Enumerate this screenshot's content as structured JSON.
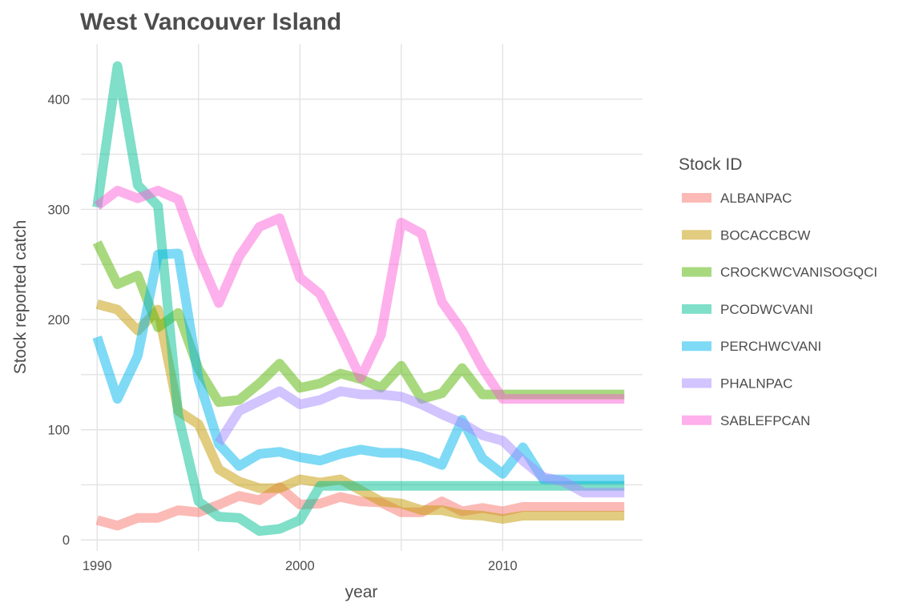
{
  "chart_data": {
    "type": "line",
    "title": "West Vancouver Island",
    "xlabel": "year",
    "ylabel": "Stock reported catch",
    "xlim": [
      1989.2,
      2016.9
    ],
    "ylim": [
      -10,
      450
    ],
    "x_ticks": [
      1990,
      2000,
      2010
    ],
    "y_ticks": [
      0,
      100,
      200,
      300,
      400
    ],
    "grid": true,
    "legend": {
      "title": "Stock ID",
      "position": "right"
    },
    "series": [
      {
        "name": "ALBANPAC",
        "color": "#F8766D",
        "x": [
          1990,
          1991,
          1992,
          1993,
          1994,
          1995,
          1996,
          1997,
          1998,
          1999,
          2000,
          2001,
          2002,
          2003,
          2004,
          2005,
          2006,
          2007,
          2008,
          2009,
          2010,
          2011,
          2012,
          2013,
          2014,
          2015,
          2016
        ],
        "y": [
          18,
          13,
          20,
          20,
          27,
          25,
          32,
          40,
          36,
          48,
          32,
          33,
          39,
          35,
          34,
          25,
          25,
          35,
          26,
          29,
          26,
          30,
          30,
          30,
          30,
          30,
          30
        ]
      },
      {
        "name": "BOCACCBCW",
        "color": "#C49A00",
        "x": [
          1990,
          1991,
          1992,
          1993,
          1994,
          1995,
          1996,
          1997,
          1998,
          1999,
          2000,
          2001,
          2002,
          2003,
          2004,
          2005,
          2006,
          2007,
          2008,
          2009,
          2010,
          2011,
          2012,
          2013,
          2014,
          2015,
          2016
        ],
        "y": [
          214,
          209,
          190,
          209,
          117,
          105,
          64,
          53,
          47,
          47,
          55,
          52,
          55,
          45,
          35,
          33,
          27,
          27,
          23,
          22,
          19,
          22,
          22,
          22,
          22,
          22,
          22
        ]
      },
      {
        "name": "CROCKWCVANISOGQCI",
        "color": "#53B400",
        "x": [
          1990,
          1991,
          1992,
          1993,
          1994,
          1995,
          1996,
          1997,
          1998,
          1999,
          2000,
          2001,
          2002,
          2003,
          2004,
          2005,
          2006,
          2007,
          2008,
          2009,
          2010,
          2011,
          2012,
          2013,
          2014,
          2015,
          2016
        ],
        "y": [
          270,
          232,
          240,
          193,
          206,
          155,
          125,
          127,
          142,
          160,
          138,
          142,
          151,
          146,
          138,
          158,
          128,
          133,
          156,
          132,
          132,
          132,
          132,
          132,
          132,
          132,
          132
        ]
      },
      {
        "name": "PCODWCVANI",
        "color": "#00C094",
        "x": [
          1990,
          1991,
          1992,
          1993,
          1994,
          1995,
          1996,
          1997,
          1998,
          1999,
          2000,
          2001,
          2002,
          2003,
          2004,
          2005,
          2006,
          2007,
          2008,
          2009,
          2010,
          2011,
          2012,
          2013,
          2014,
          2015,
          2016
        ],
        "y": [
          302,
          430,
          322,
          303,
          113,
          35,
          21,
          20,
          8,
          10,
          18,
          49,
          49,
          49,
          49,
          49,
          49,
          49,
          49,
          49,
          49,
          49,
          49,
          49,
          49,
          49,
          49
        ]
      },
      {
        "name": "PERCHWCVANI",
        "color": "#00B6EB",
        "x": [
          1990,
          1991,
          1992,
          1993,
          1994,
          1995,
          1996,
          1997,
          1998,
          1999,
          2000,
          2001,
          2002,
          2003,
          2004,
          2005,
          2006,
          2007,
          2008,
          2009,
          2010,
          2011,
          2012,
          2013,
          2014,
          2015,
          2016
        ],
        "y": [
          184,
          128,
          167,
          259,
          260,
          146,
          87,
          67,
          78,
          80,
          75,
          72,
          78,
          82,
          79,
          79,
          75,
          68,
          109,
          74,
          60,
          84,
          55,
          55,
          55,
          55,
          55
        ]
      },
      {
        "name": "PHALNPAC",
        "color": "#A58AFF",
        "x": [
          1996,
          1997,
          1998,
          1999,
          2000,
          2001,
          2002,
          2003,
          2004,
          2005,
          2006,
          2007,
          2008,
          2009,
          2010,
          2011,
          2012,
          2013,
          2014,
          2015,
          2016
        ],
        "y": [
          88,
          117,
          126,
          135,
          123,
          127,
          135,
          132,
          132,
          130,
          123,
          114,
          106,
          95,
          90,
          72,
          57,
          53,
          43,
          43,
          43
        ]
      },
      {
        "name": "SABLEFPCAN",
        "color": "#FB61D7",
        "x": [
          1990,
          1991,
          1992,
          1993,
          1994,
          1995,
          1996,
          1997,
          1998,
          1999,
          2000,
          2001,
          2002,
          2003,
          2004,
          2005,
          2006,
          2007,
          2008,
          2009,
          2010,
          2011,
          2012,
          2013,
          2014,
          2015,
          2016
        ],
        "y": [
          303,
          317,
          310,
          317,
          309,
          258,
          215,
          257,
          284,
          292,
          238,
          223,
          186,
          147,
          186,
          288,
          278,
          216,
          190,
          156,
          128,
          128,
          128,
          128,
          128,
          128,
          128
        ]
      }
    ]
  }
}
